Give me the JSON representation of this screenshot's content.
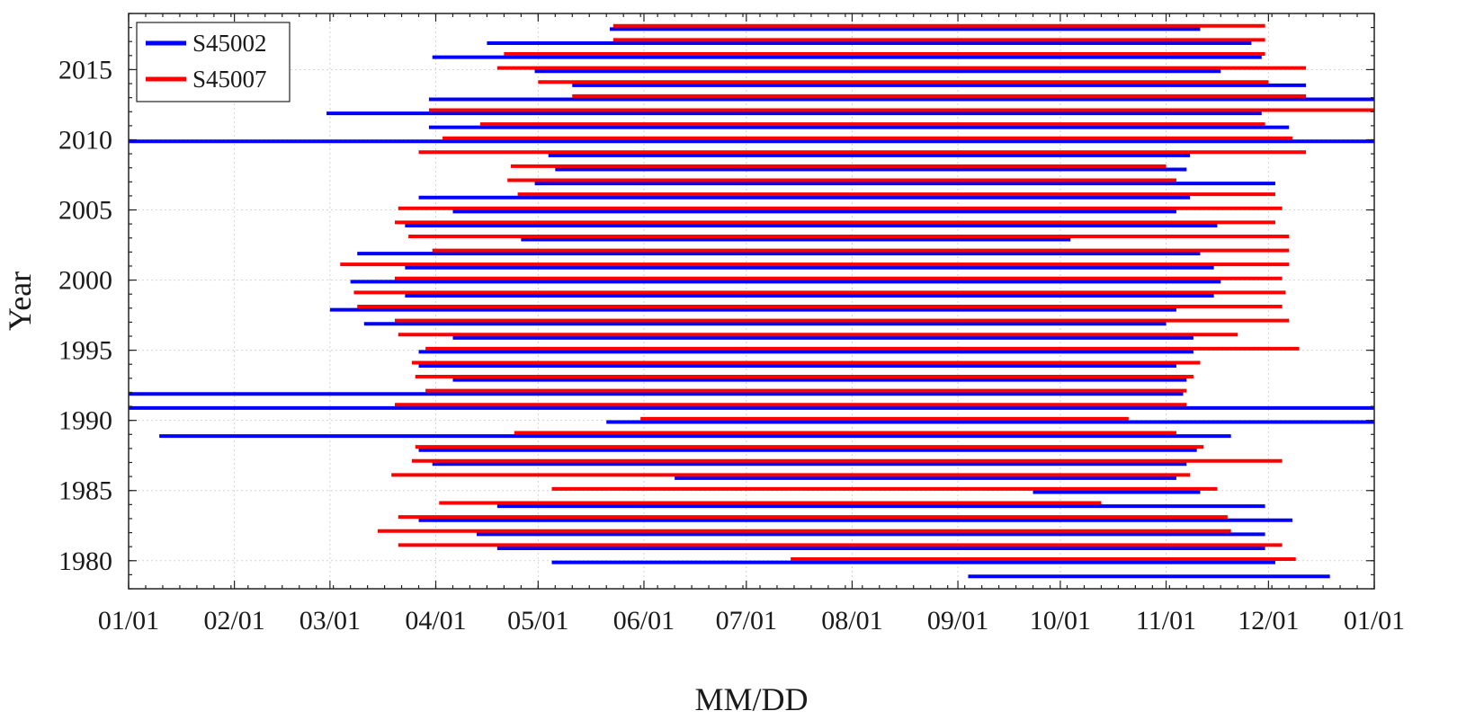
{
  "chart_data": {
    "type": "range-bar",
    "xlabel": "MM/DD",
    "ylabel": "Year",
    "x_axis": {
      "range_day_of_year": [
        0,
        365
      ],
      "tick_days": [
        0,
        31,
        59,
        90,
        120,
        151,
        181,
        212,
        243,
        273,
        304,
        334,
        365
      ],
      "tick_labels": [
        "01/01",
        "02/01",
        "03/01",
        "04/01",
        "05/01",
        "06/01",
        "07/01",
        "08/01",
        "09/01",
        "10/01",
        "11/01",
        "12/01",
        "01/01"
      ]
    },
    "y_axis": {
      "range": [
        1978,
        2019
      ],
      "ticks": [
        1980,
        1985,
        1990,
        1995,
        2000,
        2005,
        2010,
        2015
      ]
    },
    "grid": true,
    "legend_position": "top-left",
    "series": [
      {
        "name": "S45002",
        "color": "#0000ff",
        "segments": [
          {
            "year": 1979,
            "start": "09/04",
            "end": "12/19"
          },
          {
            "year": 1980,
            "start": "05/05",
            "end": "12/03"
          },
          {
            "year": 1981,
            "start": "04/19",
            "end": "11/30"
          },
          {
            "year": 1982,
            "start": "04/13",
            "end": "11/30"
          },
          {
            "year": 1983,
            "start": "03/27",
            "end": "12/08"
          },
          {
            "year": 1984,
            "start": "04/19",
            "end": "11/30"
          },
          {
            "year": 1985,
            "start": "09/23",
            "end": "11/11"
          },
          {
            "year": 1986,
            "start": "06/10",
            "end": "11/04"
          },
          {
            "year": 1987,
            "start": "03/31",
            "end": "11/07"
          },
          {
            "year": 1988,
            "start": "03/27",
            "end": "11/10"
          },
          {
            "year": 1989,
            "start": "01/10",
            "end": "11/20"
          },
          {
            "year": 1990,
            "start": "05/21",
            "end": "12/31"
          },
          {
            "year": 1991,
            "start": "01/01",
            "end": "12/31"
          },
          {
            "year": 1992,
            "start": "01/01",
            "end": "11/06"
          },
          {
            "year": 1993,
            "start": "04/06",
            "end": "11/07"
          },
          {
            "year": 1994,
            "start": "03/27",
            "end": "11/04"
          },
          {
            "year": 1995,
            "start": "03/27",
            "end": "11/09"
          },
          {
            "year": 1996,
            "start": "04/06",
            "end": "11/09"
          },
          {
            "year": 1997,
            "start": "03/11",
            "end": "11/01"
          },
          {
            "year": 1998,
            "start": "03/01",
            "end": "11/04"
          },
          {
            "year": 1999,
            "start": "03/23",
            "end": "11/15"
          },
          {
            "year": 2000,
            "start": "03/07",
            "end": "11/17"
          },
          {
            "year": 2001,
            "start": "03/23",
            "end": "11/15"
          },
          {
            "year": 2002,
            "start": "03/09",
            "end": "11/11"
          },
          {
            "year": 2003,
            "start": "04/26",
            "end": "10/04"
          },
          {
            "year": 2004,
            "start": "03/23",
            "end": "11/16"
          },
          {
            "year": 2005,
            "start": "04/06",
            "end": "11/04"
          },
          {
            "year": 2006,
            "start": "03/27",
            "end": "11/08"
          },
          {
            "year": 2007,
            "start": "04/30",
            "end": "12/03"
          },
          {
            "year": 2008,
            "start": "05/06",
            "end": "11/07"
          },
          {
            "year": 2009,
            "start": "05/04",
            "end": "11/08"
          },
          {
            "year": 2010,
            "start": "01/01",
            "end": "12/31"
          },
          {
            "year": 2011,
            "start": "03/30",
            "end": "12/07"
          },
          {
            "year": 2012,
            "start": "02/28",
            "end": "11/29"
          },
          {
            "year": 2013,
            "start": "03/30",
            "end": "12/31"
          },
          {
            "year": 2014,
            "start": "05/11",
            "end": "12/12"
          },
          {
            "year": 2015,
            "start": "04/30",
            "end": "11/17"
          },
          {
            "year": 2016,
            "start": "03/31",
            "end": "11/29"
          },
          {
            "year": 2017,
            "start": "04/16",
            "end": "11/26"
          },
          {
            "year": 2018,
            "start": "05/22",
            "end": "11/11"
          }
        ]
      },
      {
        "name": "S45007",
        "color": "#ff0000",
        "segments": [
          {
            "year": 1980,
            "start": "07/14",
            "end": "12/09"
          },
          {
            "year": 1981,
            "start": "03/21",
            "end": "12/05"
          },
          {
            "year": 1982,
            "start": "03/15",
            "end": "11/20"
          },
          {
            "year": 1983,
            "start": "03/21",
            "end": "11/19"
          },
          {
            "year": 1984,
            "start": "04/02",
            "end": "10/13"
          },
          {
            "year": 1985,
            "start": "05/05",
            "end": "11/16"
          },
          {
            "year": 1986,
            "start": "03/19",
            "end": "11/08"
          },
          {
            "year": 1987,
            "start": "03/25",
            "end": "12/05"
          },
          {
            "year": 1988,
            "start": "03/26",
            "end": "11/12"
          },
          {
            "year": 1989,
            "start": "04/24",
            "end": "11/04"
          },
          {
            "year": 1990,
            "start": "05/31",
            "end": "10/21"
          },
          {
            "year": 1991,
            "start": "03/20",
            "end": "11/07"
          },
          {
            "year": 1992,
            "start": "03/29",
            "end": "11/07"
          },
          {
            "year": 1993,
            "start": "03/26",
            "end": "11/09"
          },
          {
            "year": 1994,
            "start": "03/25",
            "end": "11/11"
          },
          {
            "year": 1995,
            "start": "03/29",
            "end": "12/10"
          },
          {
            "year": 1996,
            "start": "03/21",
            "end": "11/22"
          },
          {
            "year": 1997,
            "start": "03/20",
            "end": "12/07"
          },
          {
            "year": 1998,
            "start": "03/09",
            "end": "12/05"
          },
          {
            "year": 1999,
            "start": "03/08",
            "end": "12/06"
          },
          {
            "year": 2000,
            "start": "03/20",
            "end": "12/05"
          },
          {
            "year": 2001,
            "start": "03/04",
            "end": "12/07"
          },
          {
            "year": 2002,
            "start": "03/31",
            "end": "12/07"
          },
          {
            "year": 2003,
            "start": "03/24",
            "end": "12/07"
          },
          {
            "year": 2004,
            "start": "03/20",
            "end": "12/03"
          },
          {
            "year": 2005,
            "start": "03/21",
            "end": "12/05"
          },
          {
            "year": 2006,
            "start": "04/25",
            "end": "12/03"
          },
          {
            "year": 2007,
            "start": "04/22",
            "end": "11/04"
          },
          {
            "year": 2008,
            "start": "04/23",
            "end": "11/01"
          },
          {
            "year": 2009,
            "start": "03/27",
            "end": "12/12"
          },
          {
            "year": 2010,
            "start": "04/03",
            "end": "12/08"
          },
          {
            "year": 2011,
            "start": "04/14",
            "end": "11/30"
          },
          {
            "year": 2012,
            "start": "03/30",
            "end": "12/31"
          },
          {
            "year": 2013,
            "start": "05/11",
            "end": "12/12"
          },
          {
            "year": 2014,
            "start": "05/01",
            "end": "12/01"
          },
          {
            "year": 2015,
            "start": "04/19",
            "end": "12/12"
          },
          {
            "year": 2016,
            "start": "04/21",
            "end": "11/30"
          },
          {
            "year": 2017,
            "start": "05/23",
            "end": "11/30"
          },
          {
            "year": 2018,
            "start": "05/23",
            "end": "11/30"
          }
        ]
      }
    ]
  }
}
